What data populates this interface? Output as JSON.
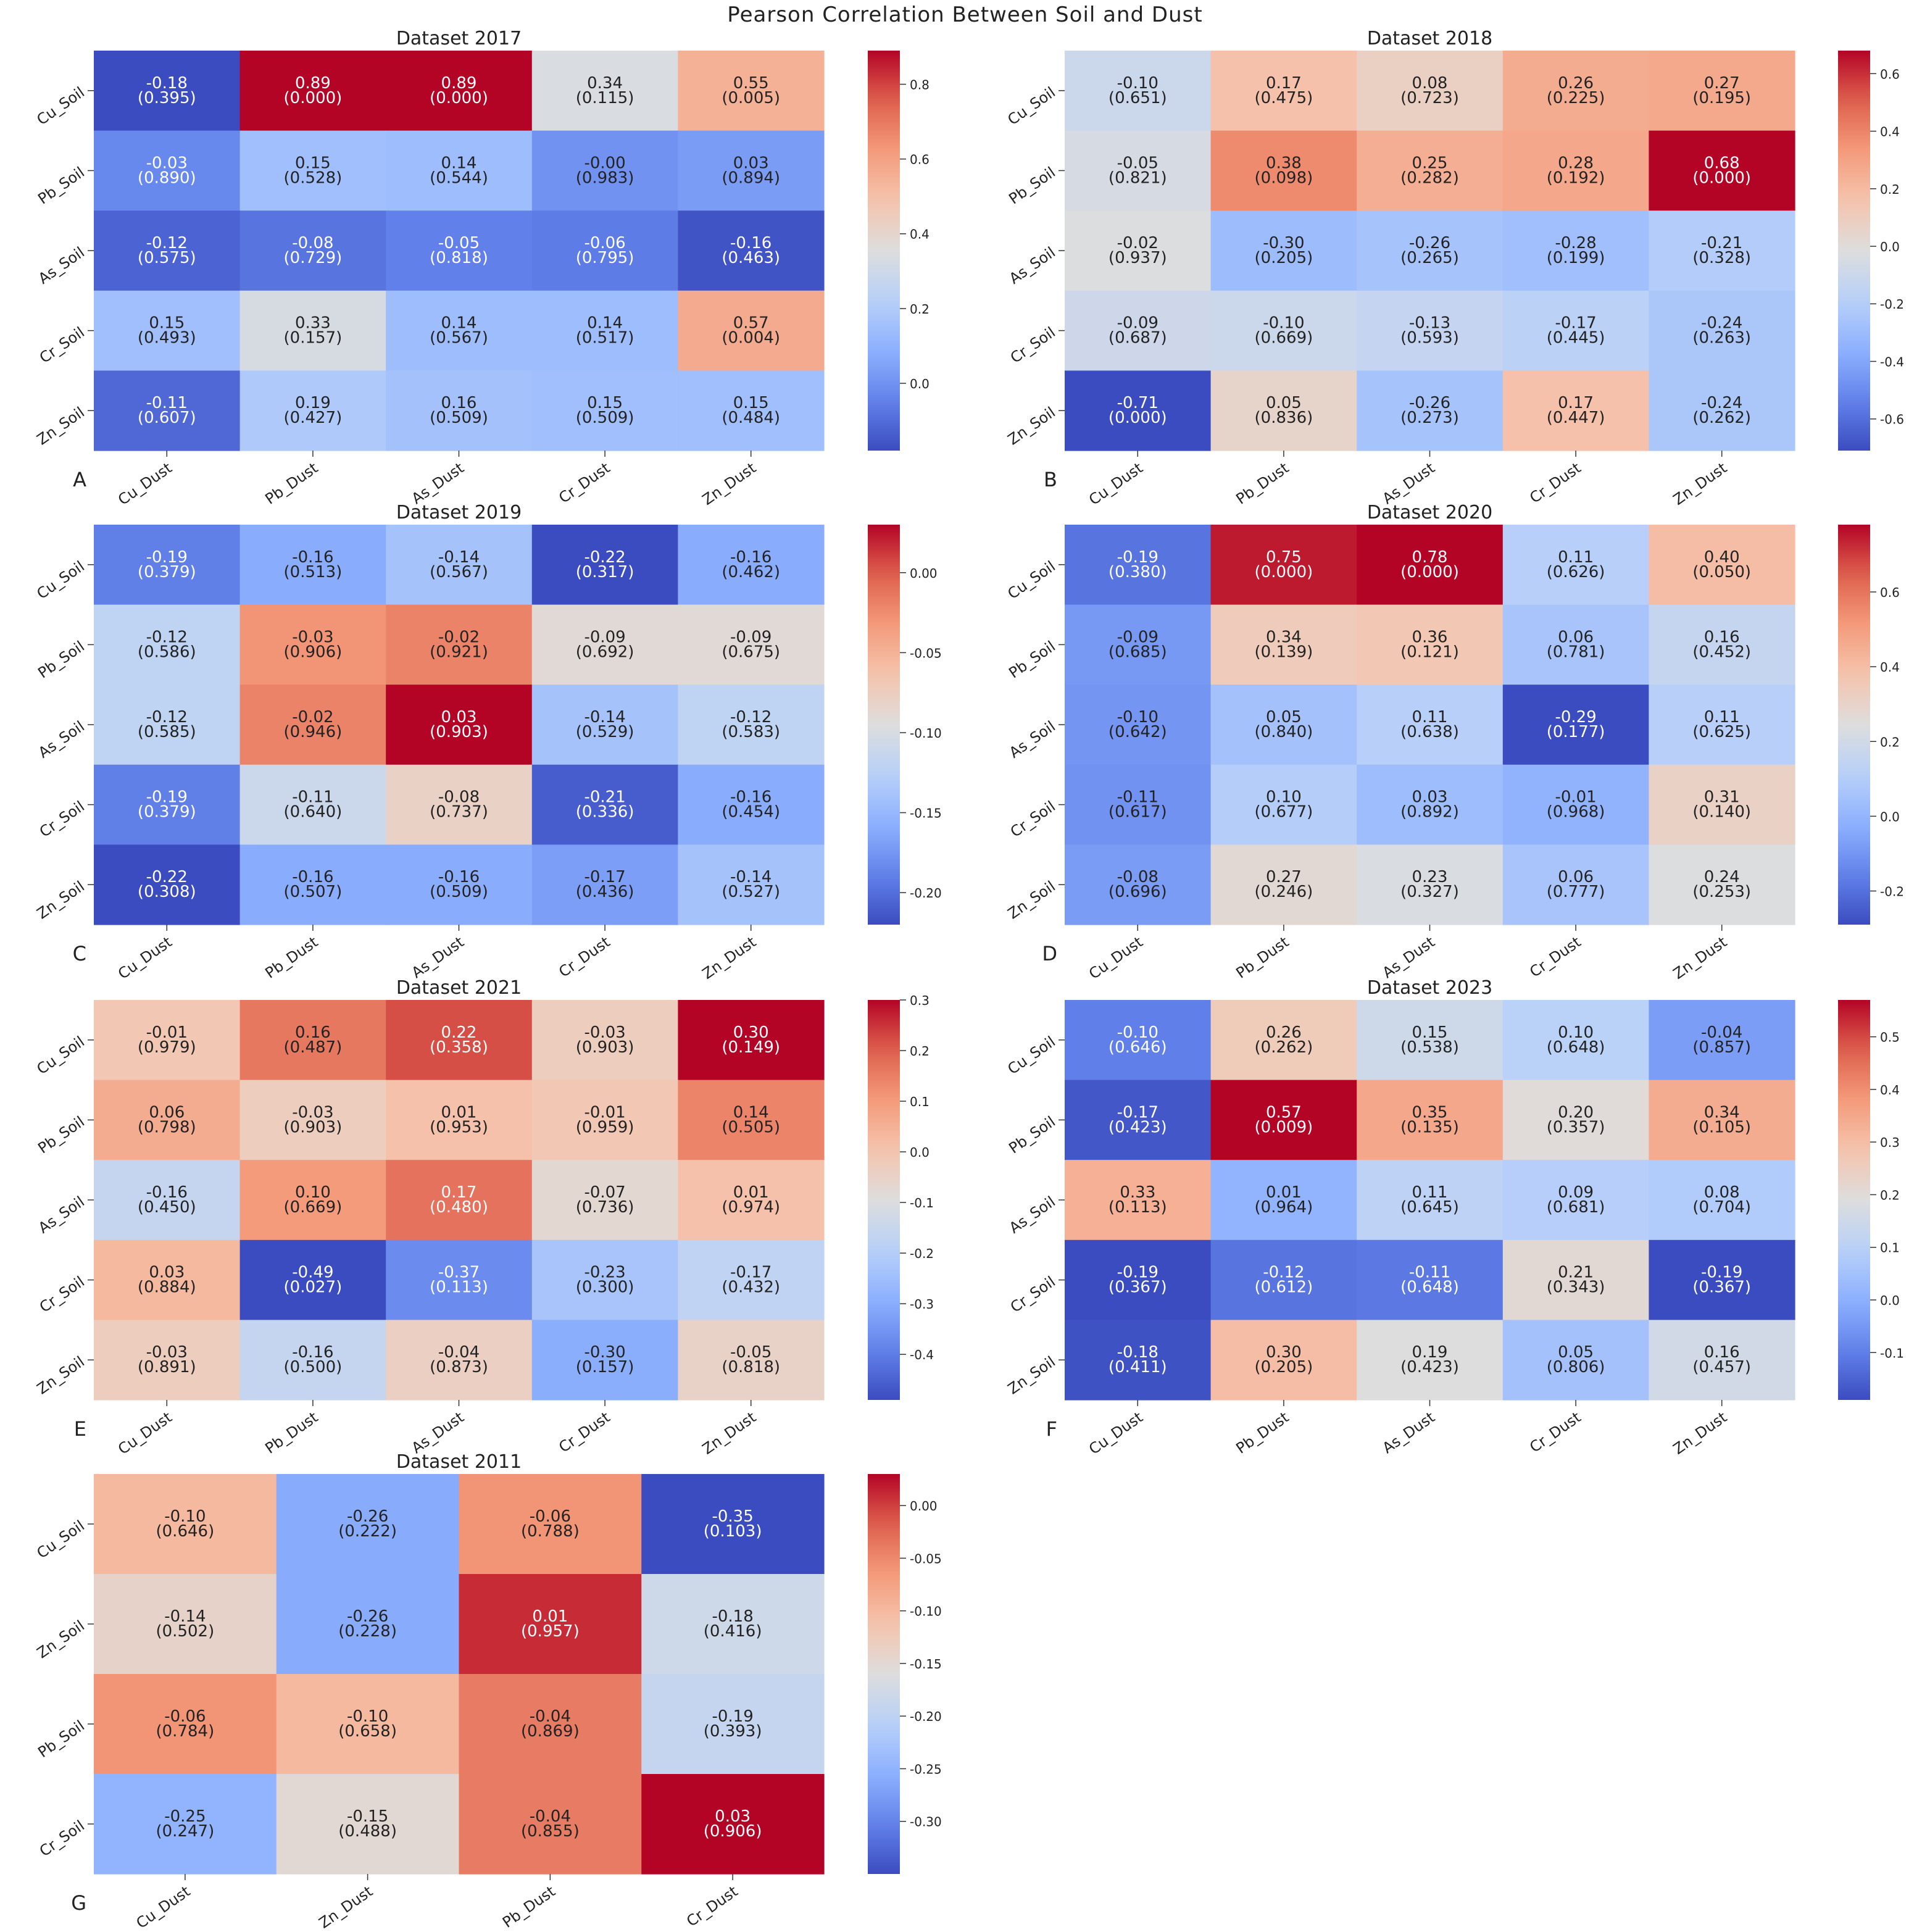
{
  "figure": {
    "suptitle": "Pearson Correlation Between Soil and Dust"
  },
  "colors": {
    "cmap": "coolwarm",
    "low": "#3b4cc0",
    "mid": "#dddddd",
    "high": "#b40426"
  },
  "chart_data": [
    {
      "type": "heatmap",
      "panel_label": "A",
      "title": "Dataset 2017",
      "row_labels": [
        "Cu_Soil",
        "Pb_Soil",
        "As_Soil",
        "Cr_Soil",
        "Zn_Soil"
      ],
      "col_labels": [
        "Cu_Dust",
        "Pb_Dust",
        "As_Dust",
        "Cr_Dust",
        "Zn_Dust"
      ],
      "cells": [
        [
          [
            "-0.18",
            "(0.395)"
          ],
          [
            "0.89",
            "(0.000)"
          ],
          [
            "0.89",
            "(0.000)"
          ],
          [
            "0.34",
            "(0.115)"
          ],
          [
            "0.55",
            "(0.005)"
          ]
        ],
        [
          [
            "-0.03",
            "(0.890)"
          ],
          [
            "0.15",
            "(0.528)"
          ],
          [
            "0.14",
            "(0.544)"
          ],
          [
            "-0.00",
            "(0.983)"
          ],
          [
            "0.03",
            "(0.894)"
          ]
        ],
        [
          [
            "-0.12",
            "(0.575)"
          ],
          [
            "-0.08",
            "(0.729)"
          ],
          [
            "-0.05",
            "(0.818)"
          ],
          [
            "-0.06",
            "(0.795)"
          ],
          [
            "-0.16",
            "(0.463)"
          ]
        ],
        [
          [
            "0.15",
            "(0.493)"
          ],
          [
            "0.33",
            "(0.157)"
          ],
          [
            "0.14",
            "(0.567)"
          ],
          [
            "0.14",
            "(0.517)"
          ],
          [
            "0.57",
            "(0.004)"
          ]
        ],
        [
          [
            "-0.11",
            "(0.607)"
          ],
          [
            "0.19",
            "(0.427)"
          ],
          [
            "0.16",
            "(0.509)"
          ],
          [
            "0.15",
            "(0.509)"
          ],
          [
            "0.15",
            "(0.484)"
          ]
        ]
      ],
      "colorbar": {
        "range": [
          -0.18,
          0.89
        ],
        "ticks": [
          0.0,
          0.2,
          0.4,
          0.6,
          0.8
        ],
        "tick_labels": [
          "0.0",
          "0.2",
          "0.4",
          "0.6",
          "0.8"
        ]
      }
    },
    {
      "type": "heatmap",
      "panel_label": "B",
      "title": "Dataset 2018",
      "row_labels": [
        "Cu_Soil",
        "Pb_Soil",
        "As_Soil",
        "Cr_Soil",
        "Zn_Soil"
      ],
      "col_labels": [
        "Cu_Dust",
        "Pb_Dust",
        "As_Dust",
        "Cr_Dust",
        "Zn_Dust"
      ],
      "cells": [
        [
          [
            "-0.10",
            "(0.651)"
          ],
          [
            "0.17",
            "(0.475)"
          ],
          [
            "0.08",
            "(0.723)"
          ],
          [
            "0.26",
            "(0.225)"
          ],
          [
            "0.27",
            "(0.195)"
          ]
        ],
        [
          [
            "-0.05",
            "(0.821)"
          ],
          [
            "0.38",
            "(0.098)"
          ],
          [
            "0.25",
            "(0.282)"
          ],
          [
            "0.28",
            "(0.192)"
          ],
          [
            "0.68",
            "(0.000)"
          ]
        ],
        [
          [
            "-0.02",
            "(0.937)"
          ],
          [
            "-0.30",
            "(0.205)"
          ],
          [
            "-0.26",
            "(0.265)"
          ],
          [
            "-0.28",
            "(0.199)"
          ],
          [
            "-0.21",
            "(0.328)"
          ]
        ],
        [
          [
            "-0.09",
            "(0.687)"
          ],
          [
            "-0.10",
            "(0.669)"
          ],
          [
            "-0.13",
            "(0.593)"
          ],
          [
            "-0.17",
            "(0.445)"
          ],
          [
            "-0.24",
            "(0.263)"
          ]
        ],
        [
          [
            "-0.71",
            "(0.000)"
          ],
          [
            "0.05",
            "(0.836)"
          ],
          [
            "-0.26",
            "(0.273)"
          ],
          [
            "0.17",
            "(0.447)"
          ],
          [
            "-0.24",
            "(0.262)"
          ]
        ]
      ],
      "colorbar": {
        "range": [
          -0.71,
          0.68
        ],
        "ticks": [
          -0.6,
          -0.4,
          -0.2,
          0.0,
          0.2,
          0.4,
          0.6
        ],
        "tick_labels": [
          "-0.6",
          "-0.4",
          "-0.2",
          "0.0",
          "0.2",
          "0.4",
          "0.6"
        ]
      }
    },
    {
      "type": "heatmap",
      "panel_label": "C",
      "title": "Dataset 2019",
      "row_labels": [
        "Cu_Soil",
        "Pb_Soil",
        "As_Soil",
        "Cr_Soil",
        "Zn_Soil"
      ],
      "col_labels": [
        "Cu_Dust",
        "Pb_Dust",
        "As_Dust",
        "Cr_Dust",
        "Zn_Dust"
      ],
      "cells": [
        [
          [
            "-0.19",
            "(0.379)"
          ],
          [
            "-0.16",
            "(0.513)"
          ],
          [
            "-0.14",
            "(0.567)"
          ],
          [
            "-0.22",
            "(0.317)"
          ],
          [
            "-0.16",
            "(0.462)"
          ]
        ],
        [
          [
            "-0.12",
            "(0.586)"
          ],
          [
            "-0.03",
            "(0.906)"
          ],
          [
            "-0.02",
            "(0.921)"
          ],
          [
            "-0.09",
            "(0.692)"
          ],
          [
            "-0.09",
            "(0.675)"
          ]
        ],
        [
          [
            "-0.12",
            "(0.585)"
          ],
          [
            "-0.02",
            "(0.946)"
          ],
          [
            "0.03",
            "(0.903)"
          ],
          [
            "-0.14",
            "(0.529)"
          ],
          [
            "-0.12",
            "(0.583)"
          ]
        ],
        [
          [
            "-0.19",
            "(0.379)"
          ],
          [
            "-0.11",
            "(0.640)"
          ],
          [
            "-0.08",
            "(0.737)"
          ],
          [
            "-0.21",
            "(0.336)"
          ],
          [
            "-0.16",
            "(0.454)"
          ]
        ],
        [
          [
            "-0.22",
            "(0.308)"
          ],
          [
            "-0.16",
            "(0.507)"
          ],
          [
            "-0.16",
            "(0.509)"
          ],
          [
            "-0.17",
            "(0.436)"
          ],
          [
            "-0.14",
            "(0.527)"
          ]
        ]
      ],
      "colorbar": {
        "range": [
          -0.22,
          0.03
        ],
        "ticks": [
          -0.2,
          -0.15,
          -0.1,
          -0.05,
          0.0
        ],
        "tick_labels": [
          "-0.20",
          "-0.15",
          "-0.10",
          "-0.05",
          "0.00"
        ]
      }
    },
    {
      "type": "heatmap",
      "panel_label": "D",
      "title": "Dataset 2020",
      "row_labels": [
        "Cu_Soil",
        "Pb_Soil",
        "As_Soil",
        "Cr_Soil",
        "Zn_Soil"
      ],
      "col_labels": [
        "Cu_Dust",
        "Pb_Dust",
        "As_Dust",
        "Cr_Dust",
        "Zn_Dust"
      ],
      "cells": [
        [
          [
            "-0.19",
            "(0.380)"
          ],
          [
            "0.75",
            "(0.000)"
          ],
          [
            "0.78",
            "(0.000)"
          ],
          [
            "0.11",
            "(0.626)"
          ],
          [
            "0.40",
            "(0.050)"
          ]
        ],
        [
          [
            "-0.09",
            "(0.685)"
          ],
          [
            "0.34",
            "(0.139)"
          ],
          [
            "0.36",
            "(0.121)"
          ],
          [
            "0.06",
            "(0.781)"
          ],
          [
            "0.16",
            "(0.452)"
          ]
        ],
        [
          [
            "-0.10",
            "(0.642)"
          ],
          [
            "0.05",
            "(0.840)"
          ],
          [
            "0.11",
            "(0.638)"
          ],
          [
            "-0.29",
            "(0.177)"
          ],
          [
            "0.11",
            "(0.625)"
          ]
        ],
        [
          [
            "-0.11",
            "(0.617)"
          ],
          [
            "0.10",
            "(0.677)"
          ],
          [
            "0.03",
            "(0.892)"
          ],
          [
            "-0.01",
            "(0.968)"
          ],
          [
            "0.31",
            "(0.140)"
          ]
        ],
        [
          [
            "-0.08",
            "(0.696)"
          ],
          [
            "0.27",
            "(0.246)"
          ],
          [
            "0.23",
            "(0.327)"
          ],
          [
            "0.06",
            "(0.777)"
          ],
          [
            "0.24",
            "(0.253)"
          ]
        ]
      ],
      "colorbar": {
        "range": [
          -0.29,
          0.78
        ],
        "ticks": [
          -0.2,
          0.0,
          0.2,
          0.4,
          0.6
        ],
        "tick_labels": [
          "-0.2",
          "0.0",
          "0.2",
          "0.4",
          "0.6"
        ]
      }
    },
    {
      "type": "heatmap",
      "panel_label": "E",
      "title": "Dataset 2021",
      "row_labels": [
        "Cu_Soil",
        "Pb_Soil",
        "As_Soil",
        "Cr_Soil",
        "Zn_Soil"
      ],
      "col_labels": [
        "Cu_Dust",
        "Pb_Dust",
        "As_Dust",
        "Cr_Dust",
        "Zn_Dust"
      ],
      "cells": [
        [
          [
            "-0.01",
            "(0.979)"
          ],
          [
            "0.16",
            "(0.487)"
          ],
          [
            "0.22",
            "(0.358)"
          ],
          [
            "-0.03",
            "(0.903)"
          ],
          [
            "0.30",
            "(0.149)"
          ]
        ],
        [
          [
            "0.06",
            "(0.798)"
          ],
          [
            "-0.03",
            "(0.903)"
          ],
          [
            "0.01",
            "(0.953)"
          ],
          [
            "-0.01",
            "(0.959)"
          ],
          [
            "0.14",
            "(0.505)"
          ]
        ],
        [
          [
            "-0.16",
            "(0.450)"
          ],
          [
            "0.10",
            "(0.669)"
          ],
          [
            "0.17",
            "(0.480)"
          ],
          [
            "-0.07",
            "(0.736)"
          ],
          [
            "0.01",
            "(0.974)"
          ]
        ],
        [
          [
            "0.03",
            "(0.884)"
          ],
          [
            "-0.49",
            "(0.027)"
          ],
          [
            "-0.37",
            "(0.113)"
          ],
          [
            "-0.23",
            "(0.300)"
          ],
          [
            "-0.17",
            "(0.432)"
          ]
        ],
        [
          [
            "-0.03",
            "(0.891)"
          ],
          [
            "-0.16",
            "(0.500)"
          ],
          [
            "-0.04",
            "(0.873)"
          ],
          [
            "-0.30",
            "(0.157)"
          ],
          [
            "-0.05",
            "(0.818)"
          ]
        ]
      ],
      "colorbar": {
        "range": [
          -0.49,
          0.3
        ],
        "ticks": [
          -0.4,
          -0.3,
          -0.2,
          -0.1,
          0.0,
          0.1,
          0.2,
          0.3
        ],
        "tick_labels": [
          "-0.4",
          "-0.3",
          "-0.2",
          "-0.1",
          "0.0",
          "0.1",
          "0.2",
          "0.3"
        ]
      }
    },
    {
      "type": "heatmap",
      "panel_label": "F",
      "title": "Dataset 2023",
      "row_labels": [
        "Cu_Soil",
        "Pb_Soil",
        "As_Soil",
        "Cr_Soil",
        "Zn_Soil"
      ],
      "col_labels": [
        "Cu_Dust",
        "Pb_Dust",
        "As_Dust",
        "Cr_Dust",
        "Zn_Dust"
      ],
      "cells": [
        [
          [
            "-0.10",
            "(0.646)"
          ],
          [
            "0.26",
            "(0.262)"
          ],
          [
            "0.15",
            "(0.538)"
          ],
          [
            "0.10",
            "(0.648)"
          ],
          [
            "-0.04",
            "(0.857)"
          ]
        ],
        [
          [
            "-0.17",
            "(0.423)"
          ],
          [
            "0.57",
            "(0.009)"
          ],
          [
            "0.35",
            "(0.135)"
          ],
          [
            "0.20",
            "(0.357)"
          ],
          [
            "0.34",
            "(0.105)"
          ]
        ],
        [
          [
            "0.33",
            "(0.113)"
          ],
          [
            "0.01",
            "(0.964)"
          ],
          [
            "0.11",
            "(0.645)"
          ],
          [
            "0.09",
            "(0.681)"
          ],
          [
            "0.08",
            "(0.704)"
          ]
        ],
        [
          [
            "-0.19",
            "(0.367)"
          ],
          [
            "-0.12",
            "(0.612)"
          ],
          [
            "-0.11",
            "(0.648)"
          ],
          [
            "0.21",
            "(0.343)"
          ],
          [
            "-0.19",
            "(0.367)"
          ]
        ],
        [
          [
            "-0.18",
            "(0.411)"
          ],
          [
            "0.30",
            "(0.205)"
          ],
          [
            "0.19",
            "(0.423)"
          ],
          [
            "0.05",
            "(0.806)"
          ],
          [
            "0.16",
            "(0.457)"
          ]
        ]
      ],
      "colorbar": {
        "range": [
          -0.19,
          0.57
        ],
        "ticks": [
          -0.1,
          0.0,
          0.1,
          0.2,
          0.3,
          0.4,
          0.5
        ],
        "tick_labels": [
          "-0.1",
          "0.0",
          "0.1",
          "0.2",
          "0.3",
          "0.4",
          "0.5"
        ]
      }
    },
    {
      "type": "heatmap",
      "panel_label": "G",
      "title": "Dataset 2011",
      "row_labels": [
        "Cu_Soil",
        "Zn_Soil",
        "Pb_Soil",
        "Cr_Soil"
      ],
      "col_labels": [
        "Cu_Dust",
        "Zn_Dust",
        "Pb_Dust",
        "Cr_Dust"
      ],
      "cells": [
        [
          [
            "-0.10",
            "(0.646)"
          ],
          [
            "-0.26",
            "(0.222)"
          ],
          [
            "-0.06",
            "(0.788)"
          ],
          [
            "-0.35",
            "(0.103)"
          ]
        ],
        [
          [
            "-0.14",
            "(0.502)"
          ],
          [
            "-0.26",
            "(0.228)"
          ],
          [
            "0.01",
            "(0.957)"
          ],
          [
            "-0.18",
            "(0.416)"
          ]
        ],
        [
          [
            "-0.06",
            "(0.784)"
          ],
          [
            "-0.10",
            "(0.658)"
          ],
          [
            "-0.04",
            "(0.869)"
          ],
          [
            "-0.19",
            "(0.393)"
          ]
        ],
        [
          [
            "-0.25",
            "(0.247)"
          ],
          [
            "-0.15",
            "(0.488)"
          ],
          [
            "-0.04",
            "(0.855)"
          ],
          [
            "0.03",
            "(0.906)"
          ]
        ]
      ],
      "colorbar": {
        "range": [
          -0.35,
          0.03
        ],
        "ticks": [
          -0.3,
          -0.25,
          -0.2,
          -0.15,
          -0.1,
          -0.05,
          0.0
        ],
        "tick_labels": [
          "-0.30",
          "-0.25",
          "-0.20",
          "-0.15",
          "-0.10",
          "-0.05",
          "0.00"
        ]
      }
    }
  ]
}
